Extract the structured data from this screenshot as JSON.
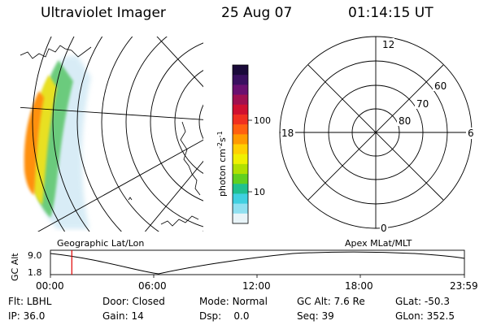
{
  "header": {
    "instrument": "Ultraviolet Imager",
    "date": "25 Aug 07",
    "time": "01:14:15 UT"
  },
  "colorbar": {
    "ticks": [
      "100",
      "10"
    ],
    "unit": "photon cm",
    "unit_sup1": "-2",
    "unit_mid": "s",
    "unit_sup2": "-1",
    "colors": [
      "#1a0a3a",
      "#3a1060",
      "#6a1070",
      "#a01050",
      "#d01030",
      "#f03020",
      "#ff6010",
      "#ff9a00",
      "#ffd000",
      "#f0f000",
      "#b0e000",
      "#60d020",
      "#20c090",
      "#40d0e0",
      "#90e0f0",
      "#e8f4f8"
    ]
  },
  "polar_plot": {
    "mlt_labels": [
      "12",
      "18",
      "6",
      "0"
    ],
    "lat_labels": [
      "60",
      "70",
      "80"
    ]
  },
  "orbit_panel": {
    "ylabel": "GC Alt",
    "y_ticks": [
      "9.0",
      "1.8"
    ],
    "left_caption": "Geographic Lat/Lon",
    "right_caption": "Apex MLat/MLT",
    "x_ticks": [
      "00:00",
      "06:00",
      "12:00",
      "18:00",
      "23:59"
    ],
    "current_hour": 1.24
  },
  "status": {
    "flt_label": "Flt:",
    "flt_value": "LBHL",
    "ip_label": "IP:",
    "ip_value": "36.0",
    "door_label": "Door:",
    "door_value": "Closed",
    "gain_label": "Gain:",
    "gain_value": "14",
    "mode_label": "Mode:",
    "mode_value": "Normal",
    "dsp_label": "Dsp:",
    "dsp_value": "0.0",
    "gcalt_label": "GC Alt:",
    "gcalt_value": "7.6 Re",
    "seq_label": "Seq:",
    "seq_value": "39",
    "glat_label": "GLat:",
    "glat_value": "-50.3",
    "glon_label": "GLon:",
    "glon_value": "352.5"
  }
}
